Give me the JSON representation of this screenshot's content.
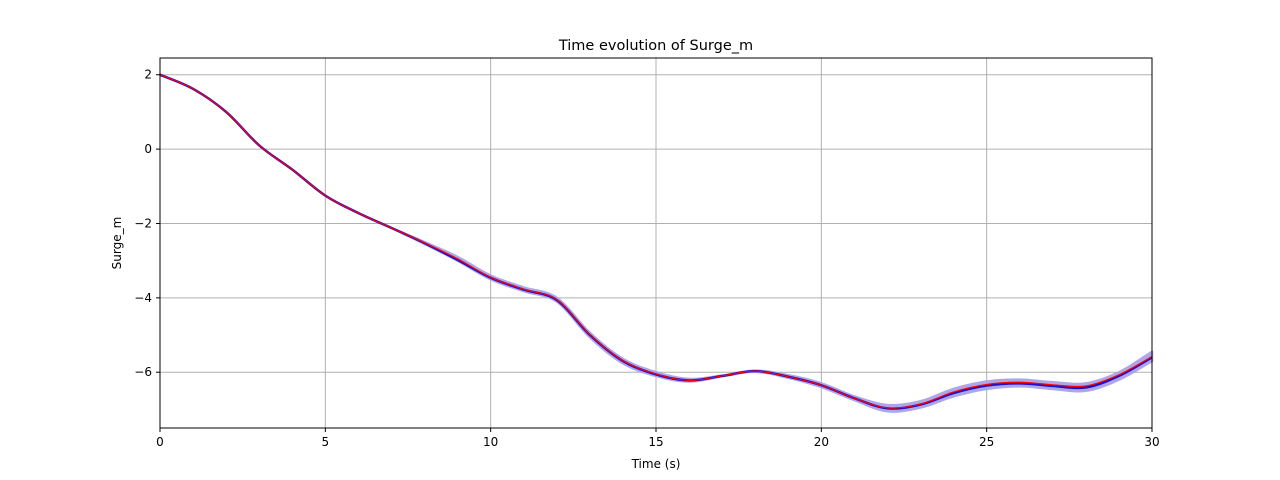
{
  "chart_data": {
    "type": "line",
    "title": "Time evolution of Surge_m",
    "xlabel": "Time (s)",
    "ylabel": "Surge_m",
    "xlim": [
      0,
      30
    ],
    "ylim": [
      -7.5,
      2.45
    ],
    "xticks": [
      0,
      5,
      10,
      15,
      20,
      25,
      30
    ],
    "yticks": [
      2,
      0,
      -2,
      -4,
      -6
    ],
    "ytick_labels": [
      "2",
      "0",
      "−2",
      "−4",
      "−6"
    ],
    "grid": true,
    "colors": {
      "band": "#a9a3e6",
      "mean": "#1a10d0",
      "reference": "#ff0000"
    },
    "x": [
      0,
      1,
      2,
      3,
      4,
      5,
      6,
      7,
      8,
      9,
      10,
      11,
      12,
      13,
      14,
      15,
      16,
      17,
      18,
      19,
      20,
      21,
      22,
      23,
      24,
      25,
      26,
      27,
      28,
      29,
      30
    ],
    "series": [
      {
        "role": "band",
        "lower": [
          2.0,
          1.62,
          1.0,
          0.1,
          -0.55,
          -1.25,
          -1.72,
          -2.12,
          -2.55,
          -3.0,
          -3.5,
          -3.82,
          -4.1,
          -5.06,
          -5.76,
          -6.1,
          -6.25,
          -6.11,
          -5.99,
          -6.15,
          -6.4,
          -6.75,
          -7.05,
          -6.95,
          -6.65,
          -6.45,
          -6.38,
          -6.45,
          -6.5,
          -6.2,
          -5.7
        ],
        "upper": [
          2.0,
          1.62,
          1.0,
          0.1,
          -0.55,
          -1.25,
          -1.72,
          -2.12,
          -2.5,
          -2.9,
          -3.4,
          -3.72,
          -4.0,
          -4.94,
          -5.64,
          -6.0,
          -6.18,
          -6.09,
          -5.96,
          -6.08,
          -6.3,
          -6.65,
          -6.88,
          -6.78,
          -6.45,
          -6.25,
          -6.2,
          -6.27,
          -6.3,
          -6.0,
          -5.45
        ]
      },
      {
        "role": "mean",
        "values": [
          2.0,
          1.62,
          1.0,
          0.1,
          -0.55,
          -1.25,
          -1.72,
          -2.12,
          -2.53,
          -2.98,
          -3.46,
          -3.78,
          -4.06,
          -5.0,
          -5.7,
          -6.06,
          -6.22,
          -6.1,
          -5.97,
          -6.12,
          -6.35,
          -6.7,
          -6.97,
          -6.87,
          -6.56,
          -6.36,
          -6.3,
          -6.37,
          -6.41,
          -6.1,
          -5.6
        ]
      },
      {
        "role": "reference",
        "values": [
          2.0,
          1.62,
          1.0,
          0.1,
          -0.55,
          -1.25,
          -1.72,
          -2.12,
          -2.52,
          -2.95,
          -3.45,
          -3.77,
          -4.05,
          -4.99,
          -5.69,
          -6.05,
          -6.22,
          -6.1,
          -5.97,
          -6.12,
          -6.35,
          -6.7,
          -6.96,
          -6.86,
          -6.53,
          -6.33,
          -6.27,
          -6.34,
          -6.37,
          -6.07,
          -5.58
        ]
      }
    ]
  }
}
